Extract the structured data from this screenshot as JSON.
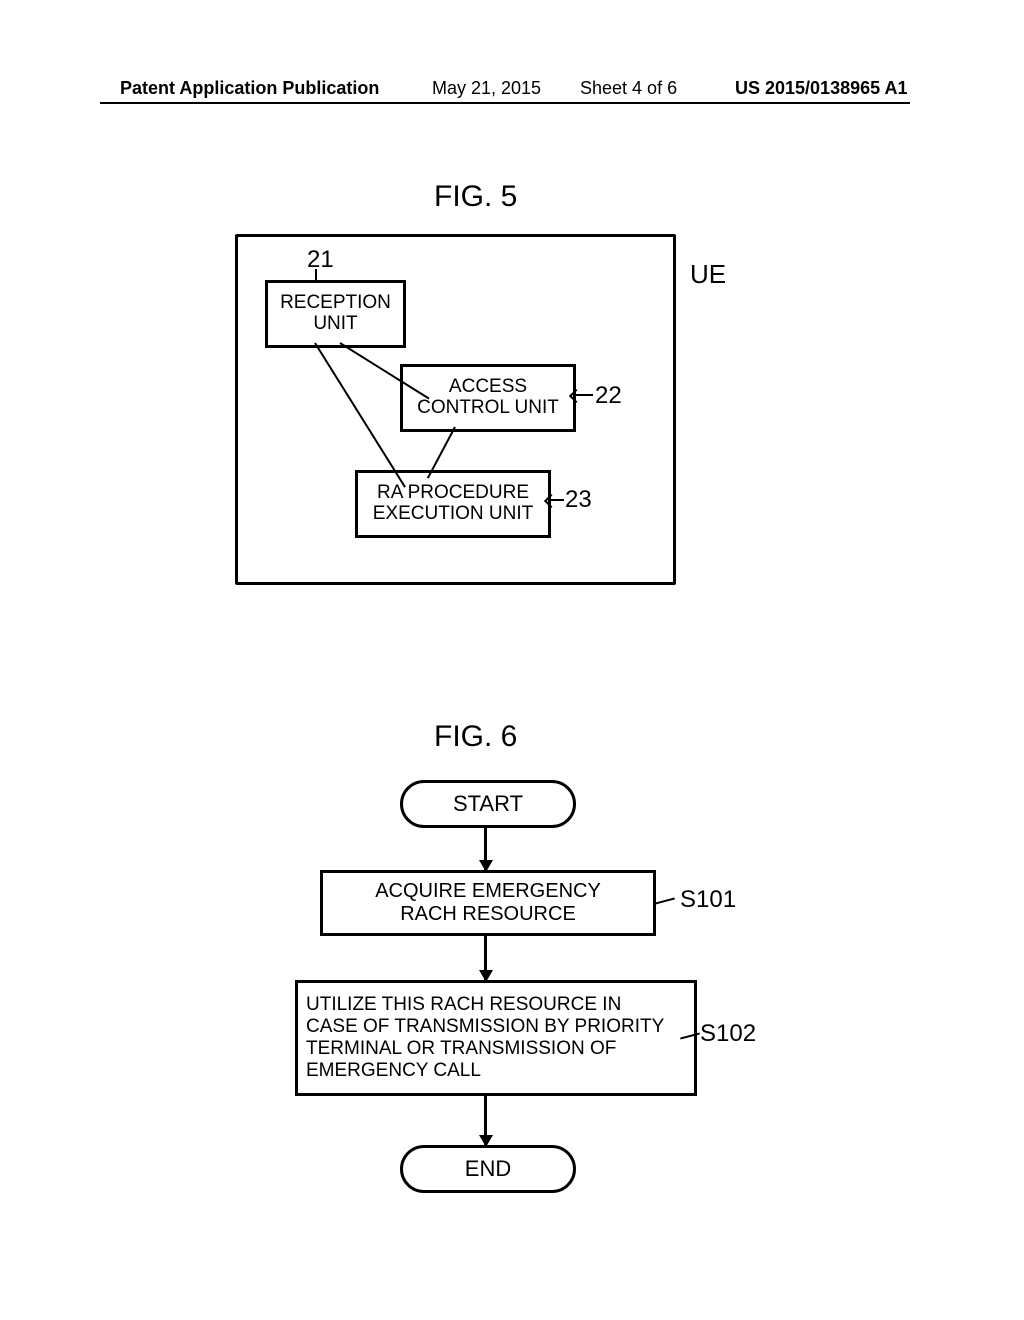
{
  "header": {
    "pub_type": "Patent Application Publication",
    "date": "May 21, 2015",
    "sheet": "Sheet 4 of 6",
    "pub_number": "US 2015/0138965 A1"
  },
  "fig5": {
    "title": "FIG. 5",
    "container_label": "UE",
    "box21": {
      "num": "21",
      "line1": "RECEPTION",
      "line2": "UNIT"
    },
    "box22": {
      "num": "22",
      "line1": "ACCESS",
      "line2": "CONTROL UNIT"
    },
    "box23": {
      "num": "23",
      "line1": "RA PROCEDURE",
      "line2": "EXECUTION UNIT"
    }
  },
  "fig6": {
    "title": "FIG. 6",
    "start": "START",
    "end": "END",
    "step1": {
      "label": "S101",
      "line1": "ACQUIRE EMERGENCY",
      "line2": "RACH RESOURCE"
    },
    "step2": {
      "label": "S102",
      "line1": "UTILIZE THIS RACH RESOURCE IN",
      "line2": "CASE OF TRANSMISSION BY PRIORITY",
      "line3": "TERMINAL OR TRANSMISSION OF",
      "line4": "EMERGENCY CALL"
    }
  },
  "style": {
    "font": "Arial",
    "stroke_color": "#000000",
    "bg_color": "#ffffff",
    "title_fontsize": 30,
    "body_fontsize": 20,
    "header_fontsize": 18,
    "line_width": 3
  }
}
